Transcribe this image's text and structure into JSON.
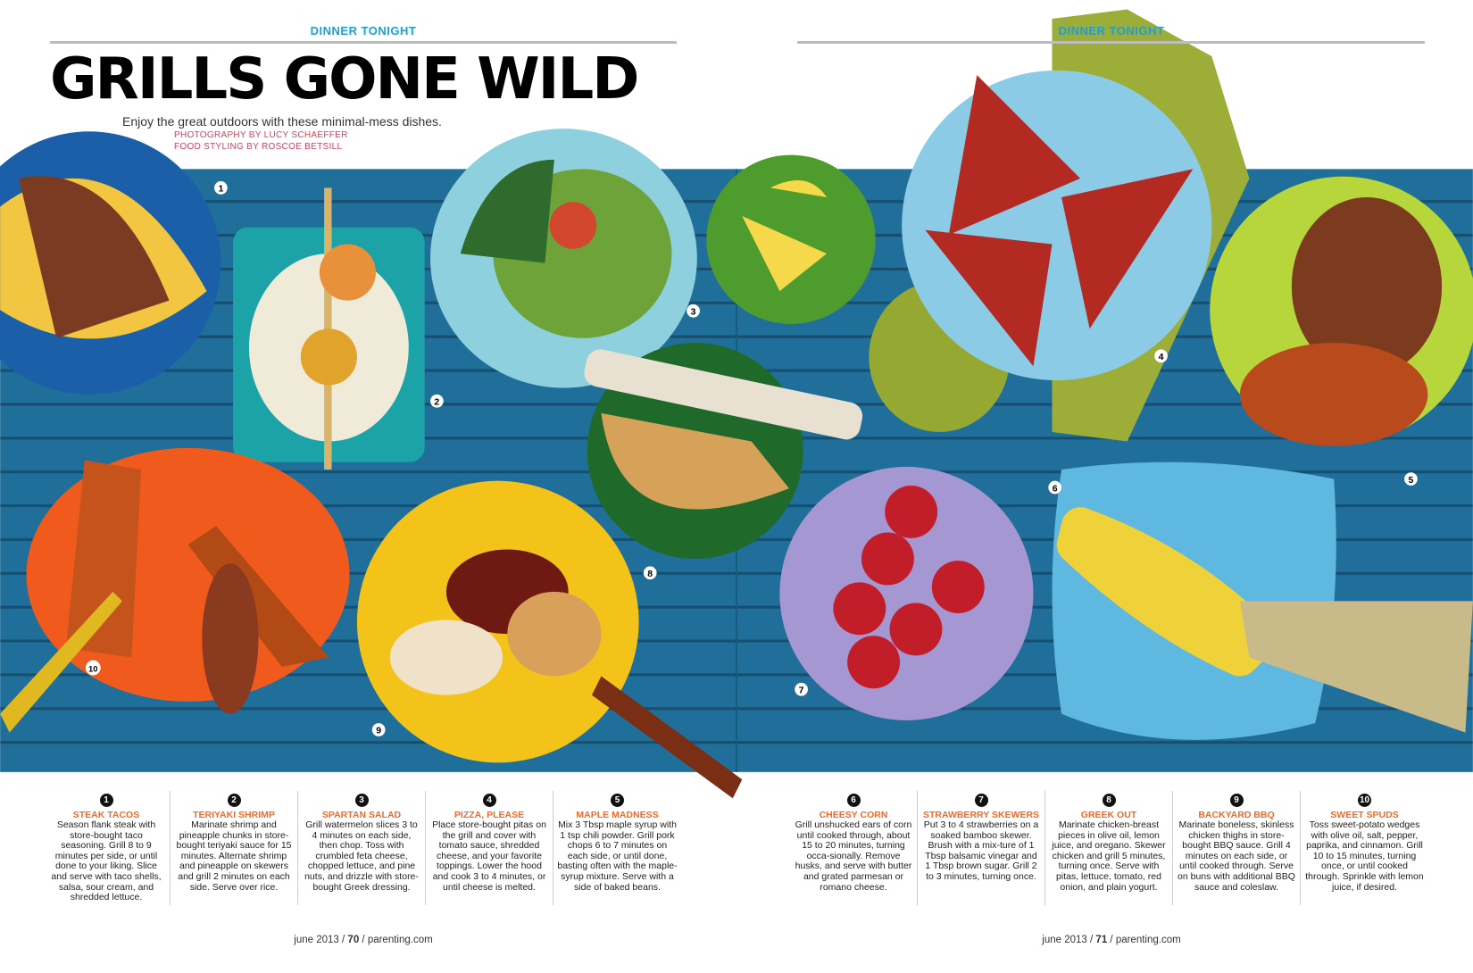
{
  "left_page": {
    "kicker": "DINNER TONIGHT",
    "title": "GRILLS GONE WILD",
    "subtitle": "Enjoy the great outdoors with these minimal-mess dishes.",
    "credits": [
      "PHOTOGRAPHY BY LUCY SCHAEFFER",
      "FOOD STYLING BY ROSCOE BETSILL"
    ],
    "footer": {
      "month": "june 2013",
      "page": "70",
      "site": "parenting.com"
    }
  },
  "right_page": {
    "kicker": "DINNER TONIGHT",
    "footer": {
      "month": "june 2013",
      "page": "71",
      "site": "parenting.com"
    }
  },
  "photo_markers": [
    "1",
    "2",
    "3",
    "4",
    "5",
    "6",
    "7",
    "8",
    "9",
    "10"
  ],
  "colors": {
    "table": "#1f6f9a",
    "kicker": "#1aa0d8",
    "recipe_title": "#f26a2a",
    "credit": "#d2425a"
  },
  "recipes": [
    {
      "num": "1",
      "title": "STEAK TACOS",
      "text": "Season flank steak with store-bought taco seasoning. Grill 8 to 9 minutes per side, or until done to your liking. Slice and serve with taco shells, salsa, sour cream, and shredded lettuce."
    },
    {
      "num": "2",
      "title": "TERIYAKI SHRIMP",
      "text": "Marinate shrimp and pineapple chunks in store-bought teriyaki sauce for 15 minutes. Alternate shrimp and pineapple on skewers and grill 2 minutes on each side. Serve over rice."
    },
    {
      "num": "3",
      "title": "SPARTAN SALAD",
      "text": "Grill watermelon slices 3 to 4 minutes on each side, then chop. Toss with crumbled feta cheese, chopped lettuce, and pine nuts, and drizzle with store-bought Greek dressing."
    },
    {
      "num": "4",
      "title": "PIZZA, PLEASE",
      "text": "Place store-bought pitas on the grill and cover with tomato sauce, shredded cheese, and your favorite toppings. Lower the hood and cook 3 to 4 minutes, or until cheese is melted."
    },
    {
      "num": "5",
      "title": "MAPLE MADNESS",
      "text": "Mix 3 Tbsp maple syrup with 1 tsp chili powder. Grill pork chops 6 to 7 minutes on each side, or until done, basting often with the maple-syrup mixture. Serve with a side of baked beans."
    },
    {
      "num": "6",
      "title": "CHEESY CORN",
      "text": "Grill unshucked ears of corn until cooked through, about 15 to 20 minutes, turning occa-sionally. Remove husks, and serve with butter and grated parmesan or romano cheese."
    },
    {
      "num": "7",
      "title": "STRAWBERRY SKEWERS",
      "text": "Put 3 to 4 strawberries on a soaked bamboo skewer. Brush with a mix-ture of 1 Tbsp balsamic vinegar and 1 Tbsp brown sugar. Grill 2 to 3 minutes, turning once."
    },
    {
      "num": "8",
      "title": "GREEK OUT",
      "text": "Marinate chicken-breast pieces in olive oil, lemon juice, and oregano. Skewer chicken and grill 5 minutes, turning once. Serve with pitas, lettuce, tomato, red onion, and plain yogurt."
    },
    {
      "num": "9",
      "title": "BACKYARD BBQ",
      "text": "Marinate boneless, skinless chicken thighs in store-bought BBQ sauce. Grill 4 minutes on each side, or until cooked through. Serve on buns with additional BBQ sauce and coleslaw."
    },
    {
      "num": "10",
      "title": "SWEET SPUDS",
      "text": "Toss sweet-potato wedges with olive oil, salt, pepper, paprika, and cinnamon. Grill 10 to 15 minutes, turning once, or until cooked through. Sprinkle with lemon juice, if desired."
    }
  ]
}
